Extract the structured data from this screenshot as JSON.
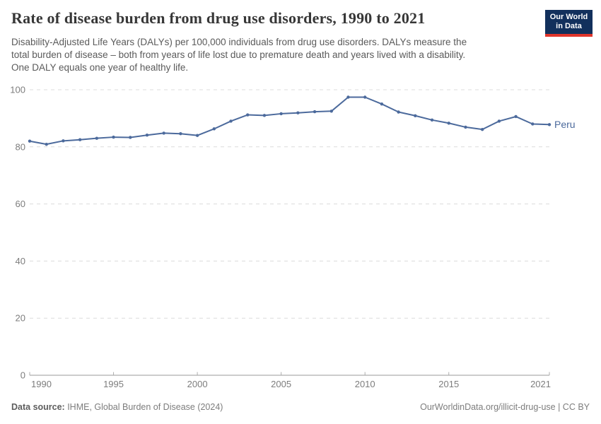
{
  "header": {
    "title": "Rate of disease burden from drug use disorders, 1990 to 2021",
    "subtitle": "Disability-Adjusted Life Years (DALYs) per 100,000 individuals from drug use disorders. DALYs measure the\ntotal burden of disease – both from years of life lost due to premature death and years lived with a disability.\nOne DALY equals one year of healthy life.",
    "logo_text": "Our World\nin Data",
    "logo_bg_color": "#12305c",
    "logo_stripe_color": "#e0352b"
  },
  "chart_data": {
    "type": "line",
    "title": "Rate of disease burden from drug use disorders, 1990 to 2021",
    "xlabel": "",
    "ylabel": "DALYs per 100,000 individuals",
    "ylim": [
      0,
      100
    ],
    "yticks": [
      0,
      20,
      40,
      60,
      80,
      100
    ],
    "xticks": [
      1990,
      1995,
      2000,
      2005,
      2010,
      2015,
      2021
    ],
    "grid": true,
    "legend_position": "end-of-line label",
    "x": [
      1990,
      1991,
      1992,
      1993,
      1994,
      1995,
      1996,
      1997,
      1998,
      1999,
      2000,
      2001,
      2002,
      2003,
      2004,
      2005,
      2006,
      2007,
      2008,
      2009,
      2010,
      2011,
      2012,
      2013,
      2014,
      2015,
      2016,
      2017,
      2018,
      2019,
      2020,
      2021
    ],
    "series": [
      {
        "name": "Peru",
        "color": "#4c6a9c",
        "values": [
          82.0,
          80.9,
          82.1,
          82.5,
          83.0,
          83.4,
          83.3,
          84.1,
          84.8,
          84.6,
          84.0,
          86.3,
          89.0,
          91.2,
          91.0,
          91.6,
          91.9,
          92.3,
          92.5,
          97.4,
          97.4,
          95.0,
          92.2,
          90.9,
          89.4,
          88.3,
          86.9,
          86.1,
          89.0,
          90.6,
          88.0,
          87.8
        ]
      }
    ],
    "colors": {
      "grid": "#dcdcdc",
      "axis": "#999999",
      "tick_mark": "#adadad",
      "tick_label": "#7d7d7d"
    }
  },
  "footer": {
    "source_label": "Data source:",
    "source_text": " IHME, Global Burden of Disease (2024)",
    "right_text": "OurWorldinData.org/illicit-drug-use | CC BY"
  }
}
